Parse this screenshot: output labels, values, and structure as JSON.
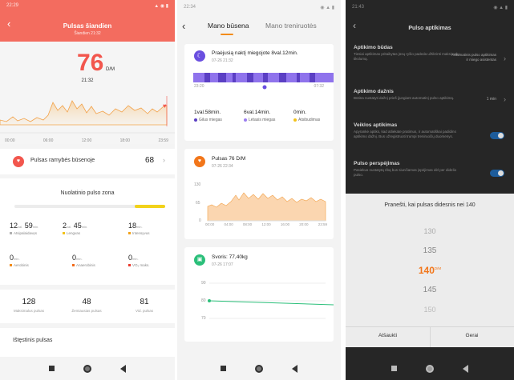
{
  "panel1": {
    "status_time": "22:29",
    "title": "Pulsas šiandien",
    "subtitle": "Šiandien 21:32",
    "bpm": "76",
    "bpm_unit": "D/M",
    "bpm_time": "21:32",
    "chart_x": [
      "00:00",
      "06:00",
      "12:00",
      "18:00",
      "23:59"
    ],
    "rest_label": "Pulsas ramybės būsenoje",
    "rest_value": "68",
    "zone_title": "Nuolatinio pulso zona",
    "zones": [
      {
        "h": "12",
        "hu": "val.",
        "m": "59",
        "mu": "min.",
        "label": "Atsipalaidavęs",
        "color": "#b0b0b0"
      },
      {
        "h": "2",
        "hu": "val.",
        "m": "45",
        "mu": "min.",
        "label": "Lengvas",
        "color": "#f2c21a"
      },
      {
        "h": "18",
        "hu": "min.",
        "m": "",
        "mu": "",
        "label": "Intensyvus",
        "color": "#f2a21a"
      },
      {
        "h": "0",
        "hu": "min.",
        "m": "",
        "mu": "",
        "label": "Aerobinis",
        "color": "#f28c1a"
      },
      {
        "h": "0",
        "hu": "min.",
        "m": "",
        "mu": "",
        "label": "Anaerobinis",
        "color": "#f26b1a"
      },
      {
        "h": "0",
        "hu": "min.",
        "m": "",
        "mu": "",
        "label": "VO₂ maks.",
        "color": "#ea3b2e"
      }
    ],
    "stats": [
      {
        "value": "128",
        "label": "Maksimalus pulsas"
      },
      {
        "value": "48",
        "label": "Žemiausias pulsas"
      },
      {
        "value": "81",
        "label": "Vid. pulsas"
      }
    ],
    "last_label": "Ištęstinis pulsas"
  },
  "panel2": {
    "status_time": "22:34",
    "tab_active": "Mano būsena",
    "tab_other": "Mano treniruotės",
    "sleep_title": "Praėjusią naktį miegojote 8val.12min.",
    "sleep_date": "07-26 21:32",
    "sleep_start": "23:20",
    "sleep_end": "07:32",
    "sleep_stats": [
      {
        "value": "1val.58min.",
        "label": "Gilus miegas",
        "color": "#5b3fc4"
      },
      {
        "value": "6val.14min.",
        "label": "Lėtasis miegas",
        "color": "#9b7ef0"
      },
      {
        "value": "0min.",
        "label": "Atsibudimas",
        "color": "#f2c21a"
      }
    ],
    "pulse_title": "Pulsas 76 D/M",
    "pulse_date": "07-26 22:34",
    "pulse_y": [
      "130",
      "65",
      "0"
    ],
    "pulse_x": [
      "00:00",
      "04:00",
      "08:00",
      "12:00",
      "16:00",
      "20:00",
      "23:59"
    ],
    "weight_title": "Svoris: 77,40kg",
    "weight_date": "07-26 17:07",
    "weight_y": [
      "90",
      "80",
      "70"
    ]
  },
  "panel3": {
    "status_time": "21:43",
    "title": "Pulso aptikimas",
    "rows": [
      {
        "title": "Aptikimo būdas",
        "desc": "Tiesiai aptikimas pritaikytas jūsų ryšio padeda užtikrinti maksimalų tikslumą.",
        "value": "Automatinis pulso aptikimas ir miego asistentas"
      },
      {
        "title": "Aptikimo dažnis",
        "desc": "Būtina nustatyti dažnį prieš įjungiant automatinį pulso aptikimą.",
        "value": "1 min"
      },
      {
        "title": "Veiklos aptikimas",
        "desc": "Apyrankė aptiks, kad atliekate pratimus, ir automatiškai padidins aptikimo dažnį. Bus užregistruoti trumpi treniruočių duomenys.",
        "value": ""
      },
      {
        "title": "Pulso perspėjimas",
        "desc": "Pasiekus nustatytą ribą bus siunčiamas įspėjimas dėl per didelio pulso.",
        "value": ""
      }
    ],
    "sheet_title": "Pranešti, kai pulsas didesnis nei 140",
    "picker": [
      "130",
      "135",
      "140",
      "145",
      "150"
    ],
    "picker_unit": "D/M",
    "cancel": "Atšaukti",
    "ok": "Gerai"
  }
}
